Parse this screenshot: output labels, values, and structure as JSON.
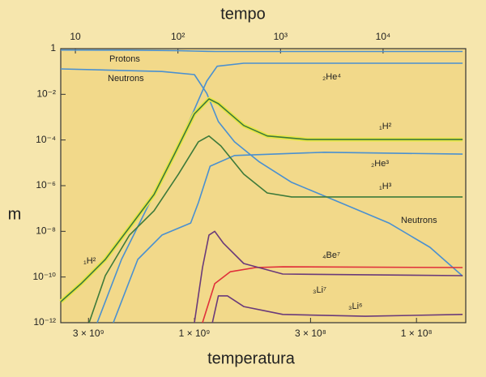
{
  "chart_data": {
    "type": "line",
    "title": "tempo",
    "x_label": "temperatura",
    "y_label": "m",
    "xscale": "log",
    "yscale": "log",
    "xlim": [
      4000000000,
      60000000
    ],
    "xticks": [
      {
        "value": 3000000000,
        "label": "3 × 10⁹"
      },
      {
        "value": 1000000000,
        "label": "1 × 10⁹"
      },
      {
        "value": 300000000,
        "label": "3 × 10⁸"
      },
      {
        "value": 100000000,
        "label": "1 × 10⁸"
      }
    ],
    "x2lim": [
      7.2,
      64000
    ],
    "x2ticks": [
      10,
      {
        "value": 100,
        "label": "10²"
      },
      {
        "value": 1000,
        "label": "10³"
      },
      {
        "value": 10000,
        "label": "10⁴"
      }
    ],
    "ylim": [
      1e-12,
      1
    ],
    "yticks": [
      1,
      {
        "value": 0.01,
        "label": "10⁻²"
      },
      {
        "value": 0.0001,
        "label": "10⁻⁴"
      },
      {
        "value": 1e-06,
        "label": "10⁻⁶"
      },
      {
        "value": 1e-08,
        "label": "10⁻⁸"
      },
      {
        "value": 1e-10,
        "label": "10⁻¹⁰"
      },
      {
        "value": 1e-12,
        "label": "10⁻¹²"
      }
    ],
    "series": [
      {
        "name": "Protons",
        "color": "#4a90d0",
        "x": [
          4000000000,
          2000000000,
          1200000000,
          1000000000,
          800000000,
          62000000
        ],
        "values": [
          0.87,
          0.86,
          0.82,
          0.78,
          0.75,
          0.75
        ]
      },
      {
        "name": "Neutrons",
        "color": "#4a90d0",
        "x": [
          4000000000,
          1400000000,
          1000000000,
          880000000,
          780000000,
          660000000,
          510000000,
          365000000,
          220000000,
          133000000,
          87000000,
          62000000
        ],
        "values": [
          0.13,
          0.1,
          0.073,
          0.011,
          0.00064,
          8.3e-05,
          1.1e-05,
          1.4e-06,
          1.8e-07,
          2.3e-08,
          2e-09,
          1.1e-10
        ]
      },
      {
        "name": "₂He⁴",
        "color": "#4a90d0",
        "x": [
          2740000000,
          2130000000,
          1590000000,
          1230000000,
          1000000000,
          880000000,
          790000000,
          600000000,
          62000000
        ],
        "values": [
          1e-12,
          5.9e-10,
          1.8e-07,
          2.4e-05,
          0.0022,
          0.038,
          0.17,
          0.23,
          0.23
        ]
      },
      {
        "name": "₁H²",
        "color": "#3d7a3a",
        "highlight": "#e6e64a",
        "x": [
          4000000000,
          3240000000,
          2520000000,
          1960000000,
          1520000000,
          1230000000,
          1000000000,
          860000000,
          780000000,
          600000000,
          470000000,
          310000000,
          62000000
        ],
        "values": [
          8.3e-12,
          5.1e-11,
          5.9e-10,
          1.5e-08,
          4.1e-07,
          2.4e-05,
          0.0014,
          0.0063,
          0.0039,
          0.00043,
          0.00015,
          0.000105,
          0.000105
        ]
      },
      {
        "name": "₂He³",
        "color": "#4a90d0",
        "x": [
          2320000000,
          1800000000,
          1400000000,
          1040000000,
          960000000,
          850000000,
          660000000,
          260000000,
          62000000
        ],
        "values": [
          1e-12,
          5.9e-10,
          6.9e-09,
          2.3e-08,
          1.8e-07,
          7.1e-06,
          2.1e-05,
          2.9e-05,
          2.4e-05
        ]
      },
      {
        "name": "₁H³",
        "color": "#3d7a3a",
        "x": [
          2980000000,
          2520000000,
          1960000000,
          1520000000,
          1180000000,
          960000000,
          860000000,
          760000000,
          600000000,
          470000000,
          365000000,
          62000000
        ],
        "values": [
          1e-12,
          1.15e-10,
          6.9e-09,
          8e-08,
          3.2e-06,
          8.3e-05,
          0.00015,
          5.5e-05,
          3.2e-06,
          4.8e-07,
          3.2e-07,
          3.2e-07
        ]
      },
      {
        "name": "₄Be⁷",
        "color": "#e0303a",
        "x": [
          920000000,
          810000000,
          690000000,
          530000000,
          400000000,
          62000000
        ],
        "values": [
          1e-12,
          5.1e-11,
          1.7e-10,
          2.6e-10,
          2.8e-10,
          2.6e-10
        ]
      },
      {
        "name": "₃Li⁷",
        "color": "#6a3a7a",
        "x": [
          1000000000,
          920000000,
          860000000,
          810000000,
          740000000,
          600000000,
          400000000,
          62000000
        ],
        "values": [
          1e-12,
          2.6e-10,
          6.9e-09,
          1e-08,
          3e-09,
          3.9e-10,
          1.35e-10,
          1.15e-10
        ]
      },
      {
        "name": "₃Li⁶",
        "color": "#6a3a7a",
        "x": [
          830000000,
          780000000,
          710000000,
          600000000,
          400000000,
          170000000,
          62000000
        ],
        "values": [
          1e-12,
          1.5e-11,
          1.5e-11,
          5.1e-12,
          2.3e-12,
          1.9e-12,
          2.3e-12
        ]
      }
    ],
    "annotations": [
      "Neutrons",
      "₁H²"
    ]
  }
}
